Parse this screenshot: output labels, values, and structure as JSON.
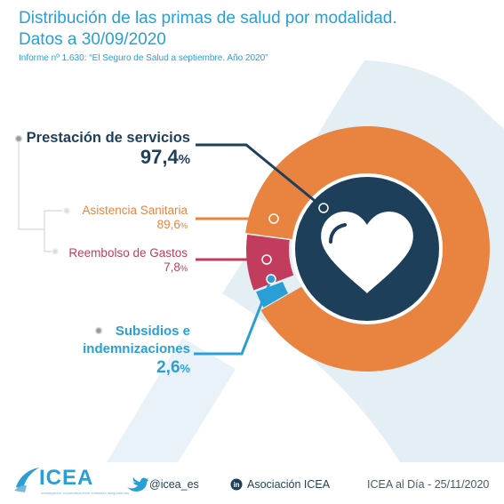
{
  "header": {
    "title_line1": "Distribución de las primas de salud por modalidad.",
    "title_line2": "Datos a 30/09/2020",
    "subtitle": "Informe nº 1.630: “El Seguro de Salud a septiembre. Año 2020”"
  },
  "chart_data": {
    "type": "pie",
    "title": "Distribución de las primas de salud por modalidad. Datos a 30/09/2020",
    "unit": "%",
    "slices": [
      {
        "name": "Prestación de servicios",
        "value": 97.4,
        "value_label": "97,4",
        "color": "#1e3f59"
      },
      {
        "name": "Asistencia Sanitaria",
        "value": 89.6,
        "value_label": "89,6",
        "color": "#e8843f",
        "parent": "Prestación de servicios"
      },
      {
        "name": "Reembolso de Gastos",
        "value": 7.8,
        "value_label": "7,8",
        "color": "#c23c5e",
        "parent": "Prestación de servicios"
      },
      {
        "name": "Subsidios e indemnizaciones",
        "value": 2.6,
        "value_label": "2,6",
        "color": "#2a9fd6"
      }
    ]
  },
  "labels": {
    "prestacion": {
      "name": "Prestación de servicios",
      "value": "97,4",
      "unit": "%"
    },
    "asistencia": {
      "name": "Asistencia Sanitaria",
      "value": "89,6",
      "unit": "%"
    },
    "reembolso": {
      "name": "Reembolso de Gastos",
      "value": "7,8",
      "unit": "%"
    },
    "subsidios": {
      "name_line1": "Subsidios e",
      "name_line2": "indemnizaciones",
      "value": "2,6",
      "unit": "%"
    }
  },
  "footer": {
    "logo": "ICEA",
    "logo_tagline": "investigación cooperativa entre entidades aseguradoras",
    "twitter": "@icea_es",
    "linkedin": "Asociación ICEA",
    "edition": "ICEA al Día - 25/11/2020"
  },
  "icons": {
    "center": "heart-icon",
    "twitter": "twitter-icon",
    "linkedin": "linkedin-icon"
  }
}
